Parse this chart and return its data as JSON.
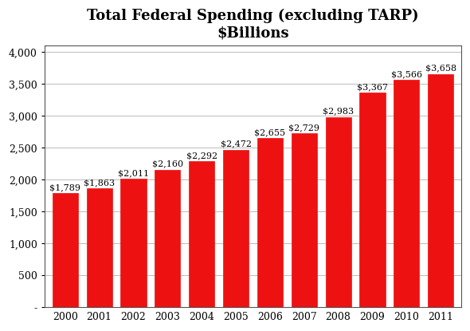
{
  "title_line1": "Total Federal Spending (excluding TARP)",
  "title_line2": "$Billions",
  "years": [
    2000,
    2001,
    2002,
    2003,
    2004,
    2005,
    2006,
    2007,
    2008,
    2009,
    2010,
    2011
  ],
  "values": [
    1789,
    1863,
    2011,
    2160,
    2292,
    2472,
    2655,
    2729,
    2983,
    3367,
    3566,
    3658
  ],
  "labels": [
    "$1,789",
    "$1,863",
    "$2,011",
    "$2,160",
    "$2,292",
    "$2,472",
    "$2,655",
    "$2,729",
    "$2,983",
    "$3,367",
    "$3,566",
    "$3,658"
  ],
  "bar_color": "#ee1111",
  "bar_edge_color": "#ee1111",
  "ylim": [
    0,
    4000
  ],
  "yticks": [
    0,
    500,
    1000,
    1500,
    2000,
    2500,
    3000,
    3500,
    4000
  ],
  "ytick_labels": [
    "-",
    "500",
    "1,000",
    "1,500",
    "2,000",
    "2,500",
    "3,000",
    "3,500",
    "4,000"
  ],
  "bg_color": "#ffffff",
  "title_fontsize": 13,
  "label_fontsize": 8,
  "tick_fontsize": 9,
  "grid_color": "#bbbbbb",
  "bar_width": 0.75
}
